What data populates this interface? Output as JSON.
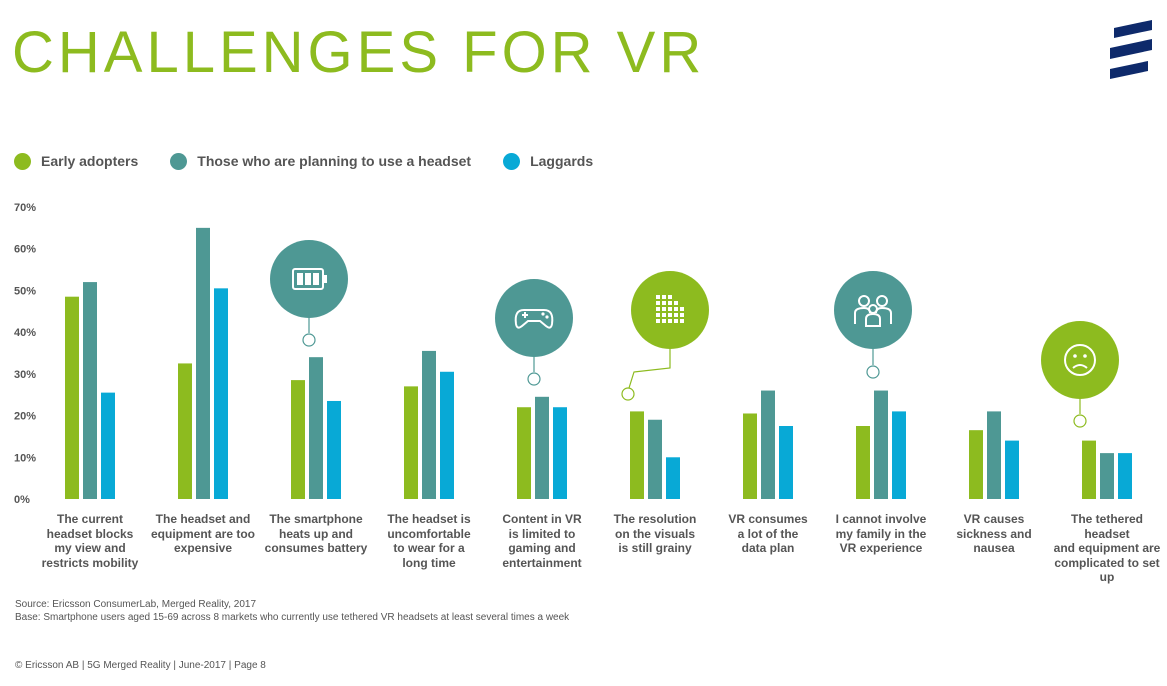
{
  "page": {
    "title": "CHALLENGES FOR VR",
    "source": "Source: Ericsson ConsumerLab, Merged Reality, 2017",
    "base": "Base: Smartphone users aged 15-69 across 8 markets who currently use tethered VR headsets at least several times a week",
    "footer": "© Ericsson AB | 5G Merged Reality | June-2017 |  Page 8"
  },
  "colors": {
    "title": "#8dbb1f",
    "logo": "#0e2a6b",
    "icon_teal": "#4e9894",
    "icon_green": "#8dbb1f"
  },
  "chart_data": {
    "type": "bar",
    "categories": [
      "The current headset blocks my view and restricts mobility",
      "The headset and equipment are too expensive",
      "The smartphone heats up and consumes battery",
      "The headset is uncomfortable to wear for a long time",
      "Content in VR is limited to gaming and entertainment",
      "The resolution on the visuals is still grainy",
      "VR consumes a lot of the data plan",
      "I cannot involve my family in the VR experience",
      "VR causes sickness and nausea",
      "The tethered headset and equipment are complicated to set up"
    ],
    "category_lines": [
      [
        "The current",
        "headset blocks",
        "my view and",
        "restricts mobility"
      ],
      [
        "The headset and",
        "equipment are too",
        "expensive"
      ],
      [
        "The smartphone",
        "heats up and",
        "consumes battery"
      ],
      [
        "The headset is",
        "uncomfortable",
        "to wear for a",
        "long time"
      ],
      [
        "Content in VR",
        "is limited to",
        "gaming and",
        "entertainment"
      ],
      [
        "The resolution",
        "on the visuals",
        "is still grainy"
      ],
      [
        "VR consumes",
        "a lot of the",
        "data plan"
      ],
      [
        "I cannot involve",
        "my family in the",
        "VR experience"
      ],
      [
        "VR causes",
        "sickness and",
        "nausea"
      ],
      [
        "The tethered headset",
        "and equipment are",
        "complicated to set up"
      ]
    ],
    "series": [
      {
        "name": "Early adopters",
        "color": "#8dbb1f",
        "values": [
          48.5,
          32.5,
          28.5,
          27,
          22,
          21,
          20.5,
          17.5,
          16.5,
          14
        ]
      },
      {
        "name": "Those who are planning to use a headset",
        "color": "#4e9894",
        "values": [
          52,
          65,
          34,
          35.5,
          24.5,
          19,
          26,
          26,
          21,
          11
        ]
      },
      {
        "name": "Laggards",
        "color": "#08a9d6",
        "values": [
          25.5,
          50.5,
          23.5,
          30.5,
          22,
          10,
          17.5,
          21,
          14,
          11
        ]
      }
    ],
    "yticks": [
      "0%",
      "10%",
      "20%",
      "30%",
      "40%",
      "50%",
      "60%",
      "70%"
    ],
    "ylim": [
      0,
      70
    ],
    "grid": false,
    "legend_position": "top-left",
    "icons": [
      {
        "category_index": 2,
        "name": "battery-icon",
        "color": "teal"
      },
      {
        "category_index": 4,
        "name": "gamepad-icon",
        "color": "teal"
      },
      {
        "category_index": 5,
        "name": "pixels-icon",
        "color": "green"
      },
      {
        "category_index": 7,
        "name": "family-icon",
        "color": "teal"
      },
      {
        "category_index": 9,
        "name": "sad-face-icon",
        "color": "green"
      }
    ]
  }
}
